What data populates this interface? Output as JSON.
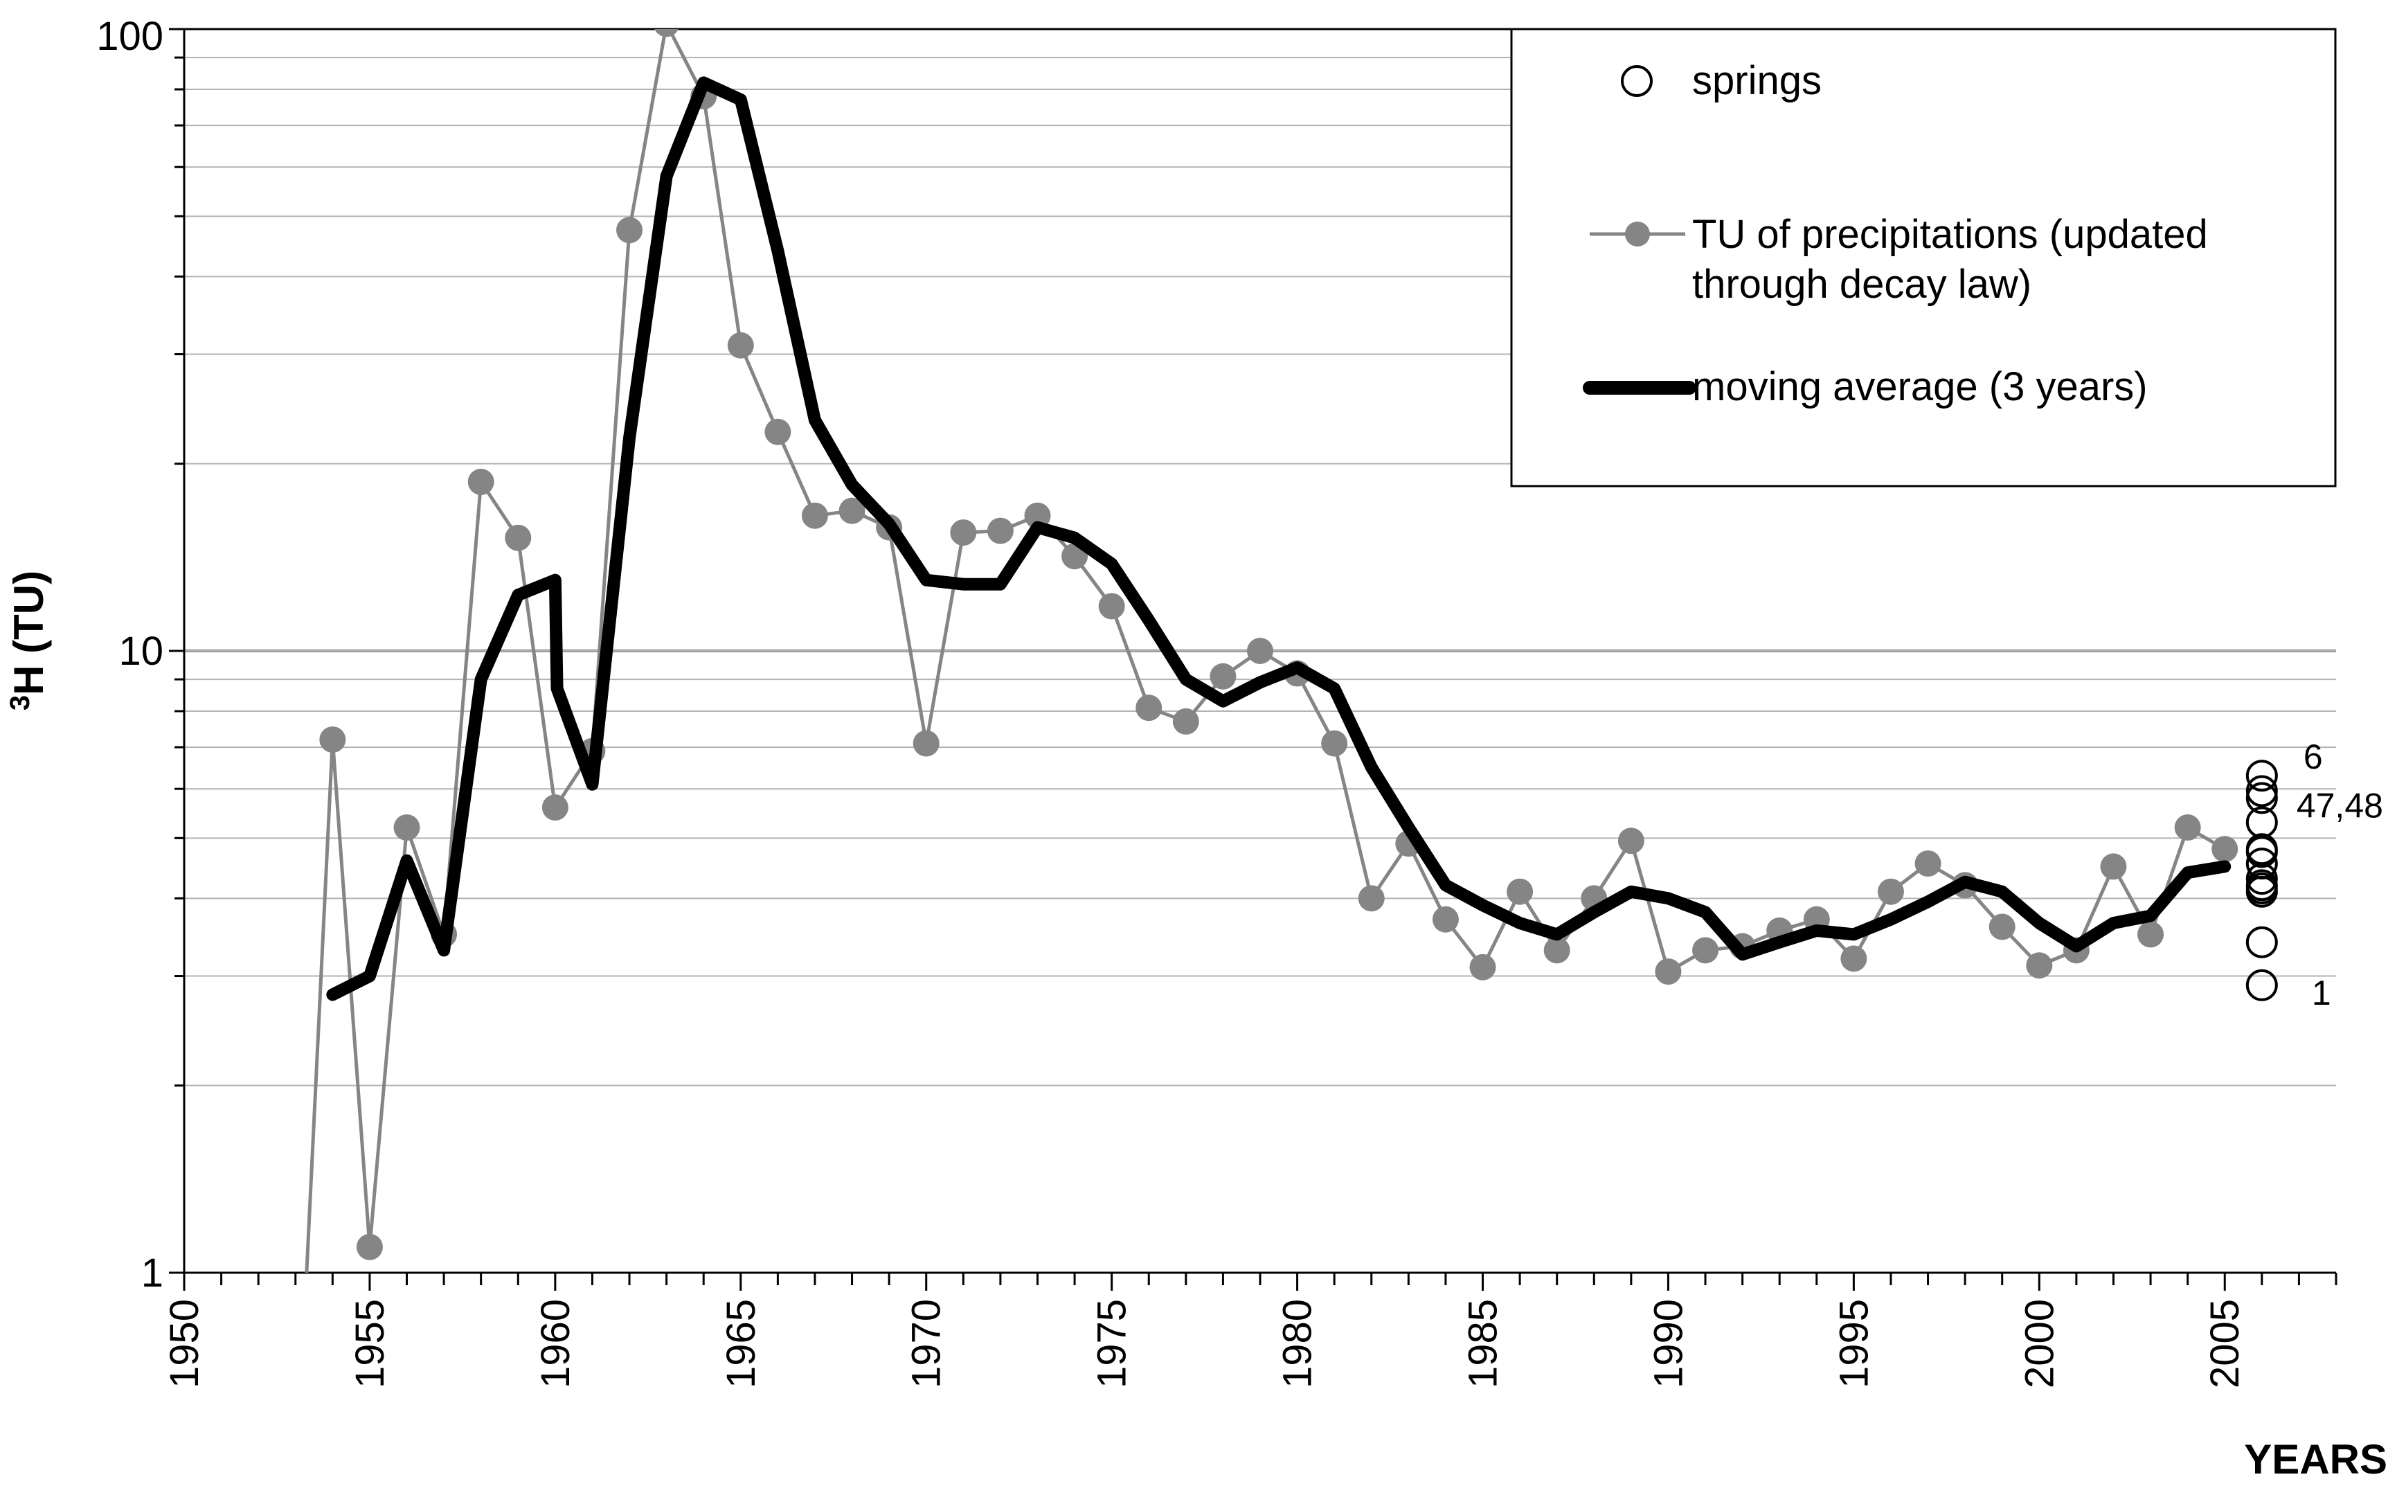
{
  "chart_data": {
    "type": "line",
    "xlabel": "YEARS",
    "ylabel": "³H (TU)",
    "xlim": [
      1950,
      2008
    ],
    "ylim": [
      1,
      100
    ],
    "yscale": "log",
    "grid": true,
    "legend_position": "top-right",
    "x_ticks": [
      "1950",
      "1955",
      "1960",
      "1965",
      "1970",
      "1975",
      "1980",
      "1985",
      "1990",
      "1995",
      "2000",
      "2005"
    ],
    "y_ticks": [
      "1",
      "10",
      "100"
    ],
    "colors": {
      "precip": "#858585",
      "average": "#000000",
      "springs": "#000000",
      "grid": "#b3b3b3"
    },
    "legend": {
      "springs": "springs",
      "precip_line1": "TU of precipitations (updated",
      "precip_line2": "through decay law)",
      "average": "moving average (3 years)"
    },
    "series": [
      {
        "name": "TU of precipitations (updated through decay law)",
        "x": [
          1953.3,
          1954,
          1955,
          1956,
          1957,
          1958,
          1959,
          1960,
          1961,
          1962,
          1963,
          1964,
          1965,
          1966,
          1967,
          1968,
          1969,
          1970,
          1971,
          1972,
          1973,
          1974,
          1975,
          1976,
          1977,
          1978,
          1979,
          1980,
          1981,
          1982,
          1983,
          1984,
          1985,
          1986,
          1987,
          1988,
          1989,
          1990,
          1991,
          1992,
          1993,
          1994,
          1995,
          1996,
          1997,
          1998,
          1999,
          2000,
          2001,
          2002,
          2003,
          2004,
          2005
        ],
        "y": [
          1.0,
          7.2,
          1.1,
          5.2,
          3.5,
          18.7,
          15.2,
          5.6,
          6.9,
          47.5,
          102,
          78,
          31,
          22.5,
          16.5,
          16.8,
          15.8,
          7.1,
          15.5,
          15.6,
          16.5,
          14.2,
          11.8,
          8.1,
          7.7,
          9.1,
          10.0,
          9.2,
          7.1,
          4.0,
          4.9,
          3.7,
          3.1,
          4.1,
          3.3,
          4.0,
          4.95,
          3.05,
          3.3,
          3.35,
          3.55,
          3.7,
          3.2,
          4.1,
          4.55,
          4.2,
          3.6,
          3.12,
          3.3,
          4.5,
          3.5,
          5.2,
          4.8
        ],
        "marker": "filled-circle"
      },
      {
        "name": "moving average (3 years)",
        "x": [
          1954,
          1955,
          1956,
          1957,
          1958,
          1959,
          1960,
          1960.05,
          1961,
          1962,
          1963,
          1964,
          1965,
          1966,
          1967,
          1968,
          1969,
          1970,
          1971,
          1972,
          1973,
          1974,
          1975,
          1976,
          1977,
          1978,
          1979,
          1980,
          1981,
          1982,
          1983,
          1984,
          1985,
          1986,
          1987,
          1988,
          1989,
          1990,
          1991,
          1992,
          1993,
          1994,
          1995,
          1996,
          1997,
          1998,
          1999,
          2000,
          2001,
          2002,
          2003,
          2004,
          2005
        ],
        "y": [
          2.8,
          3.0,
          4.6,
          3.3,
          9.0,
          12.3,
          13.0,
          8.7,
          6.1,
          22.0,
          58.0,
          82.0,
          77.0,
          44.0,
          23.5,
          18.5,
          16.0,
          13.0,
          12.8,
          12.8,
          15.8,
          15.2,
          13.8,
          11.2,
          9.0,
          8.3,
          8.9,
          9.4,
          8.7,
          6.5,
          5.2,
          4.2,
          3.9,
          3.65,
          3.5,
          3.8,
          4.1,
          4.0,
          3.8,
          3.25,
          3.4,
          3.55,
          3.5,
          3.7,
          3.95,
          4.25,
          4.1,
          3.65,
          3.35,
          3.65,
          3.75,
          4.4,
          4.5
        ]
      },
      {
        "name": "springs",
        "x": [
          2006,
          2006,
          2006,
          2006,
          2006,
          2006,
          2006,
          2006,
          2006,
          2006,
          2006,
          2006,
          2006
        ],
        "y": [
          6.3,
          5.95,
          5.8,
          5.3,
          4.8,
          4.75,
          4.55,
          4.3,
          4.2,
          4.15,
          4.1,
          3.4,
          2.9
        ],
        "marker": "open-circle"
      }
    ],
    "annotations": [
      {
        "text": "6",
        "x": 2006,
        "y": 6.3
      },
      {
        "text": "47,48",
        "x": 2006,
        "y": 5.95
      },
      {
        "text": "1",
        "x": 2006,
        "y": 2.9
      }
    ]
  }
}
